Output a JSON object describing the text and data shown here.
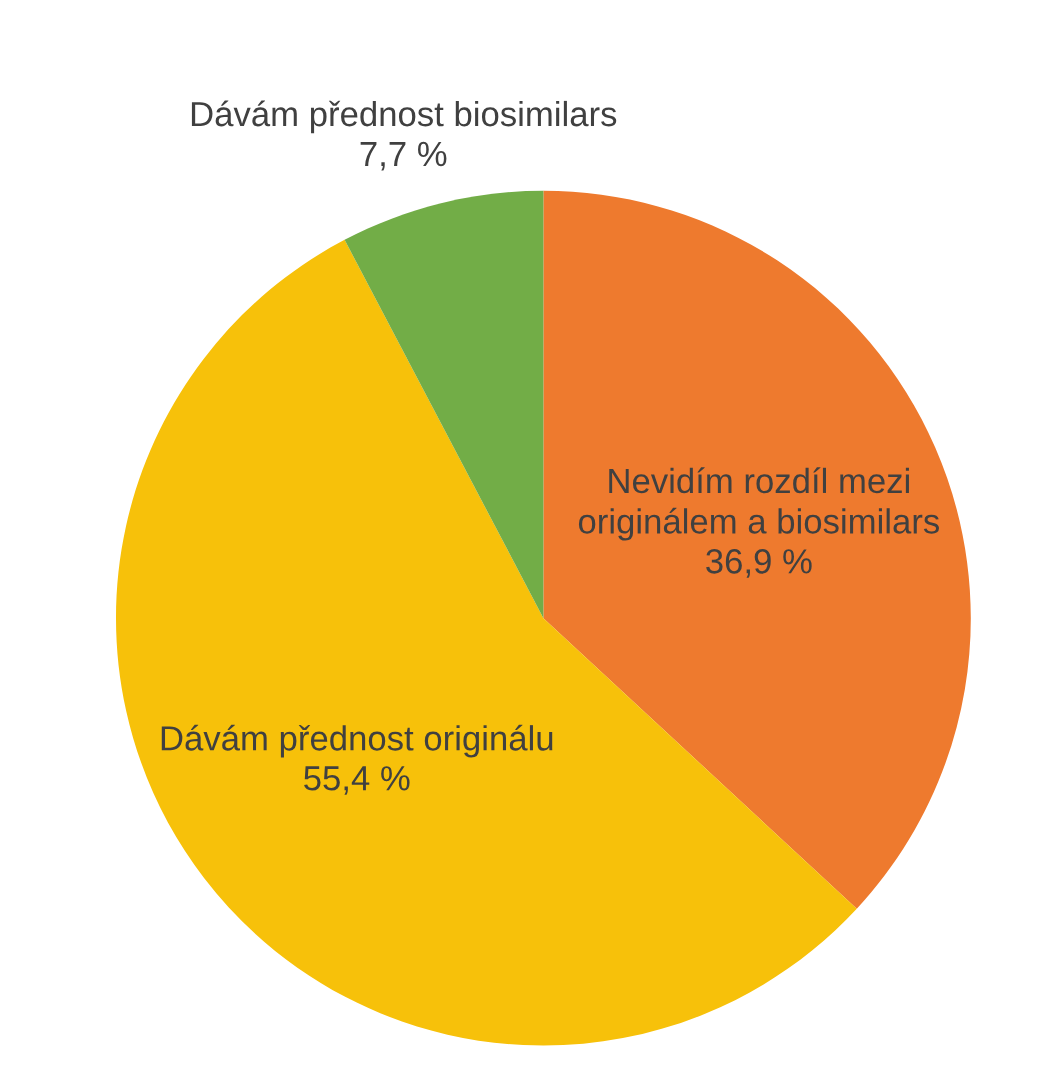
{
  "chart_data": {
    "type": "pie",
    "categories": [
      "Nevidím rozdíl mezi originálem a biosimilars",
      "Dávám přednost originálu",
      "Dávám přednost biosimilars"
    ],
    "values": [
      36.9,
      55.4,
      7.7
    ],
    "colors": [
      "#ee7a2e",
      "#f7c10a",
      "#72ad47"
    ],
    "value_labels": [
      "36,9 %",
      "55,4 %",
      "7,7 %"
    ],
    "legend": false
  }
}
